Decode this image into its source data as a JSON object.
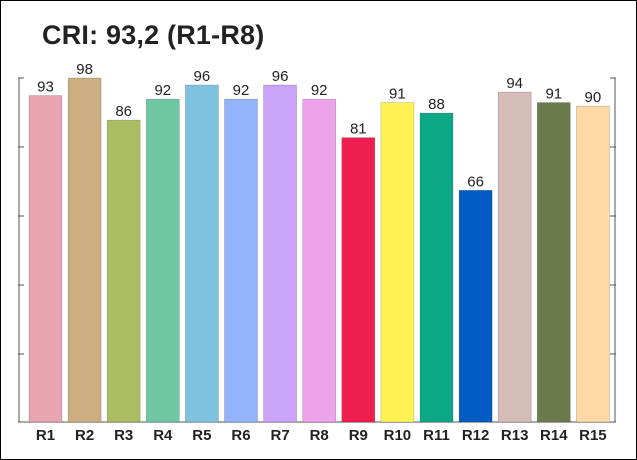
{
  "chart_data": {
    "type": "bar",
    "title": "CRI: 93,2 (R1-R8)",
    "xlabel": "",
    "ylabel": "",
    "ylim": [
      0,
      100
    ],
    "grid": false,
    "legend": "none",
    "categories": [
      "R1",
      "R2",
      "R3",
      "R4",
      "R5",
      "R6",
      "R7",
      "R8",
      "R9",
      "R10",
      "R11",
      "R12",
      "R13",
      "R14",
      "R15"
    ],
    "values": [
      93,
      98,
      86,
      92,
      96,
      92,
      96,
      92,
      81,
      91,
      88,
      66,
      94,
      91,
      90
    ],
    "colors": [
      "#E8A4B0",
      "#CDAE80",
      "#AABD62",
      "#6FC6A2",
      "#7FC2E0",
      "#93B4FB",
      "#CBA3F9",
      "#EDA2EC",
      "#EE1F4E",
      "#FFF252",
      "#0BA786",
      "#025CC3",
      "#D6BCB7",
      "#6A7A4C",
      "#FFD8A6"
    ]
  }
}
